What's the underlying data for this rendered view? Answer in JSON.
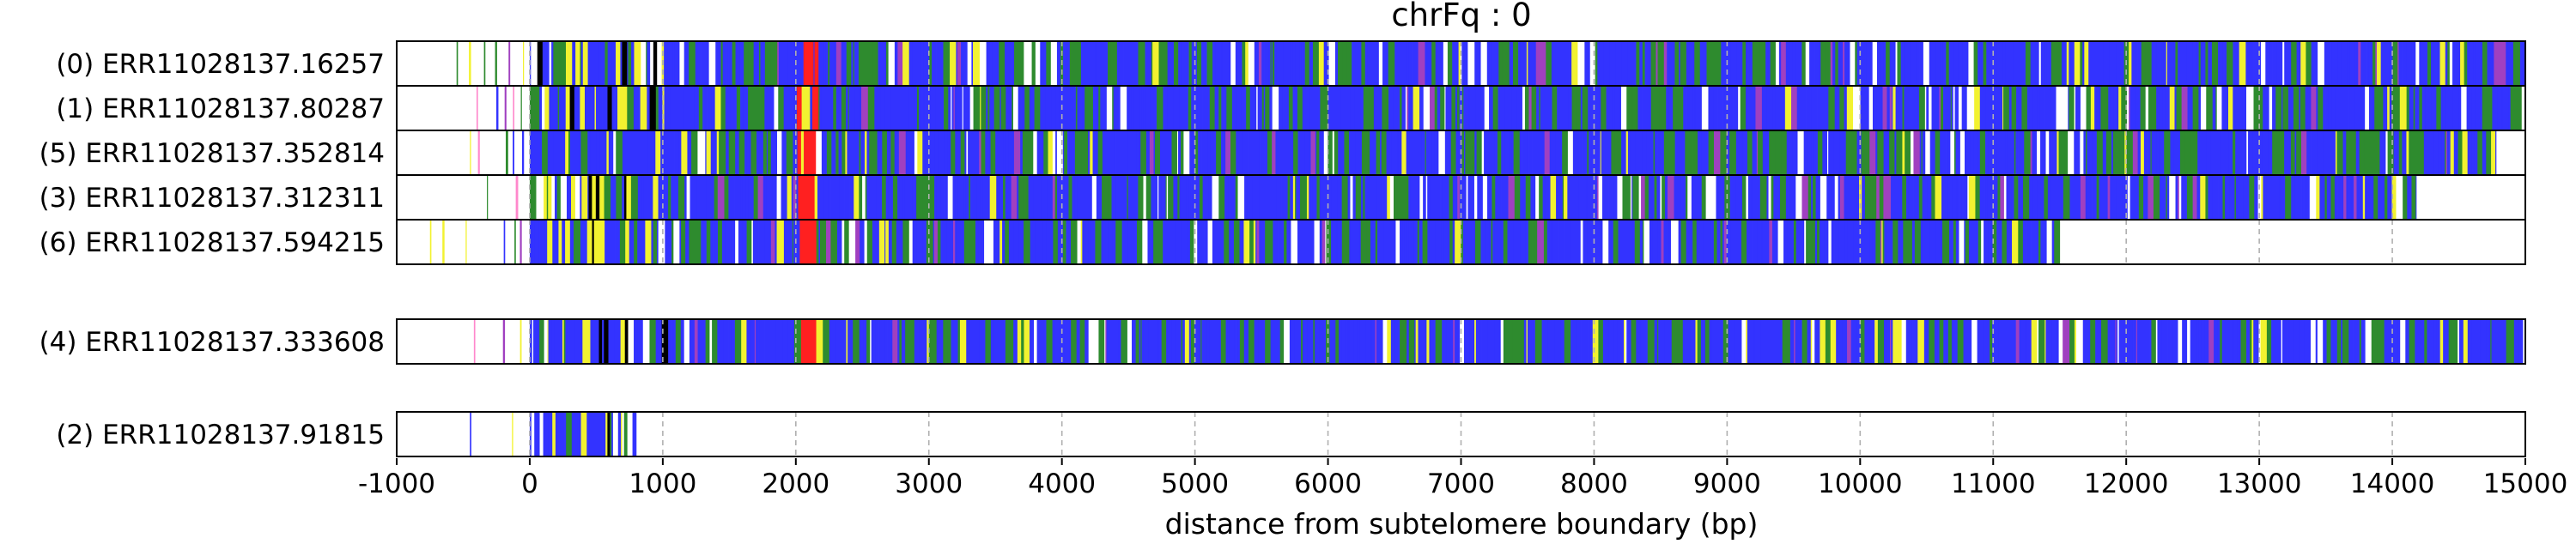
{
  "chart_data": {
    "type": "heatmap",
    "title": "chrFq : 0",
    "xlabel": "distance from subtelomere boundary (bp)",
    "ylabel": "",
    "xlim": [
      -1000,
      15000
    ],
    "xticks": [
      -1000,
      0,
      1000,
      2000,
      3000,
      4000,
      5000,
      6000,
      7000,
      8000,
      9000,
      10000,
      11000,
      12000,
      13000,
      14000,
      15000
    ],
    "grid": "vertical-dashed",
    "palette": {
      "blue": "#3333ff",
      "green": "#2e8b2e",
      "yellow": "#f2f230",
      "red": "#ff2020",
      "white": "#ffffff",
      "purple": "#a040c0",
      "pink": "#ff88cc",
      "black": "#000000"
    },
    "reads": [
      {
        "label": "(0) ERR11028137.16257",
        "start": -550,
        "end": 15000,
        "group": 0,
        "seed": 11
      },
      {
        "label": "(1) ERR11028137.80287",
        "start": -400,
        "end": 14970,
        "group": 0,
        "seed": 23
      },
      {
        "label": "(5) ERR11028137.352814",
        "start": -500,
        "end": 14780,
        "group": 0,
        "seed": 37
      },
      {
        "label": "(3) ERR11028137.312311",
        "start": -500,
        "end": 14180,
        "group": 0,
        "seed": 41
      },
      {
        "label": "(6) ERR11028137.594215",
        "start": -750,
        "end": 11500,
        "group": 0,
        "seed": 53
      },
      {
        "label": "(4) ERR11028137.333608",
        "start": -420,
        "end": 14980,
        "group": 1,
        "seed": 67
      },
      {
        "label": "(2) ERR11028137.91815",
        "start": -450,
        "end": 800,
        "group": 2,
        "seed": 79
      }
    ]
  }
}
